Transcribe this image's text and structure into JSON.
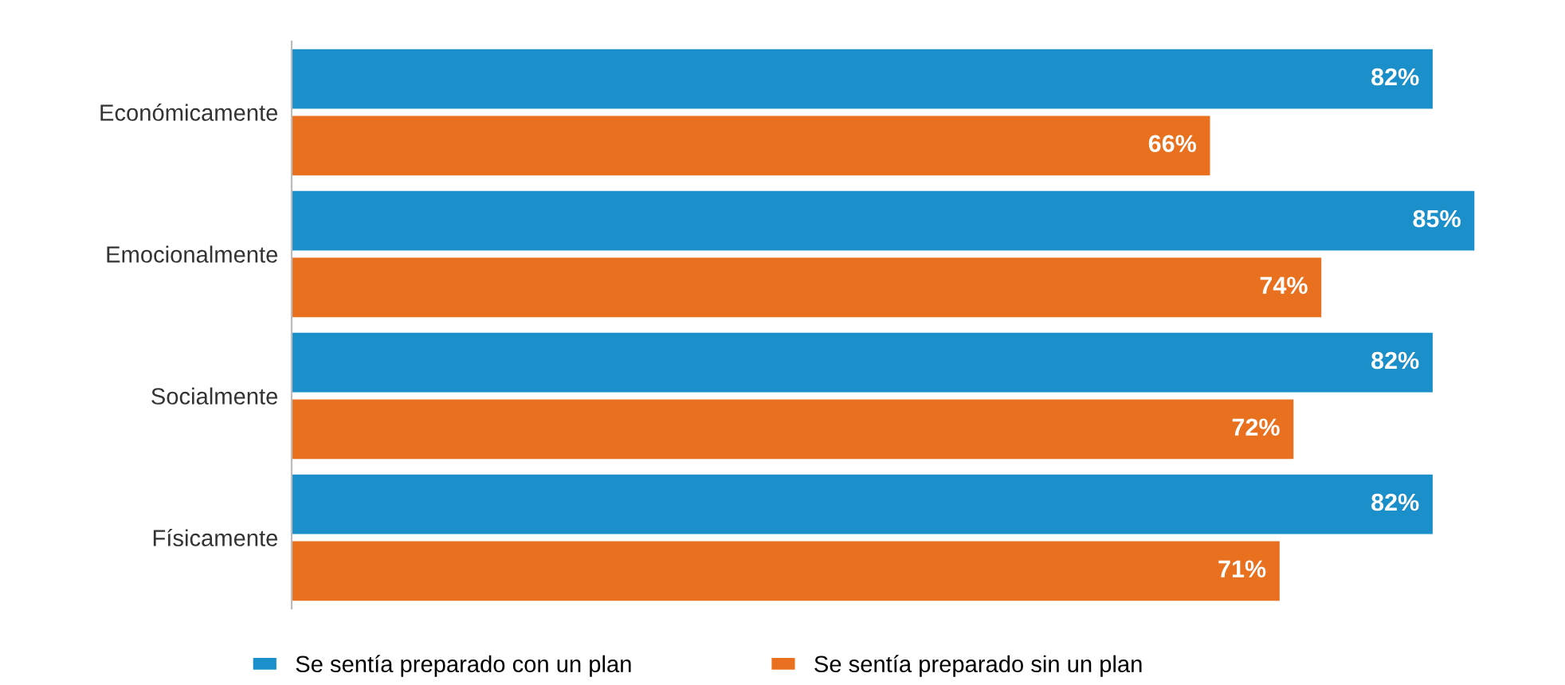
{
  "chart_data": {
    "type": "bar",
    "orientation": "horizontal",
    "categories": [
      "Económicamente",
      "Emocionalmente",
      "Socialmente",
      "Físicamente"
    ],
    "series": [
      {
        "name": "Se sentía preparado con un plan",
        "color": "#1b8fc9",
        "values": [
          82,
          85,
          82,
          82
        ],
        "value_labels": [
          "82%",
          "85%",
          "82%",
          "82%"
        ]
      },
      {
        "name": "Se sentía preparado sin un plan",
        "color": "#e8701e",
        "values": [
          66,
          74,
          72,
          71
        ],
        "value_labels": [
          "66%",
          "74%",
          "72%",
          "71%"
        ]
      }
    ],
    "grid": false,
    "legend": "bottom"
  }
}
